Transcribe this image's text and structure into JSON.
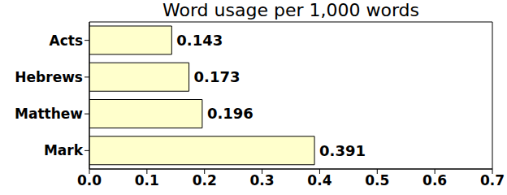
{
  "chart_data": {
    "type": "bar",
    "title": "Word usage per 1,000 words",
    "orientation": "horizontal",
    "categories": [
      "Acts",
      "Hebrews",
      "Matthew",
      "Mark"
    ],
    "values": [
      0.143,
      0.173,
      0.196,
      0.391
    ],
    "color": "#ffffcc",
    "xlim": [
      0,
      0.7
    ],
    "xticks": [
      {
        "value": 0,
        "label": "0.0"
      },
      0.1,
      0.2,
      0.3,
      0.4,
      0.5,
      0.6,
      0.7
    ],
    "grid": false,
    "data_labels": true
  }
}
